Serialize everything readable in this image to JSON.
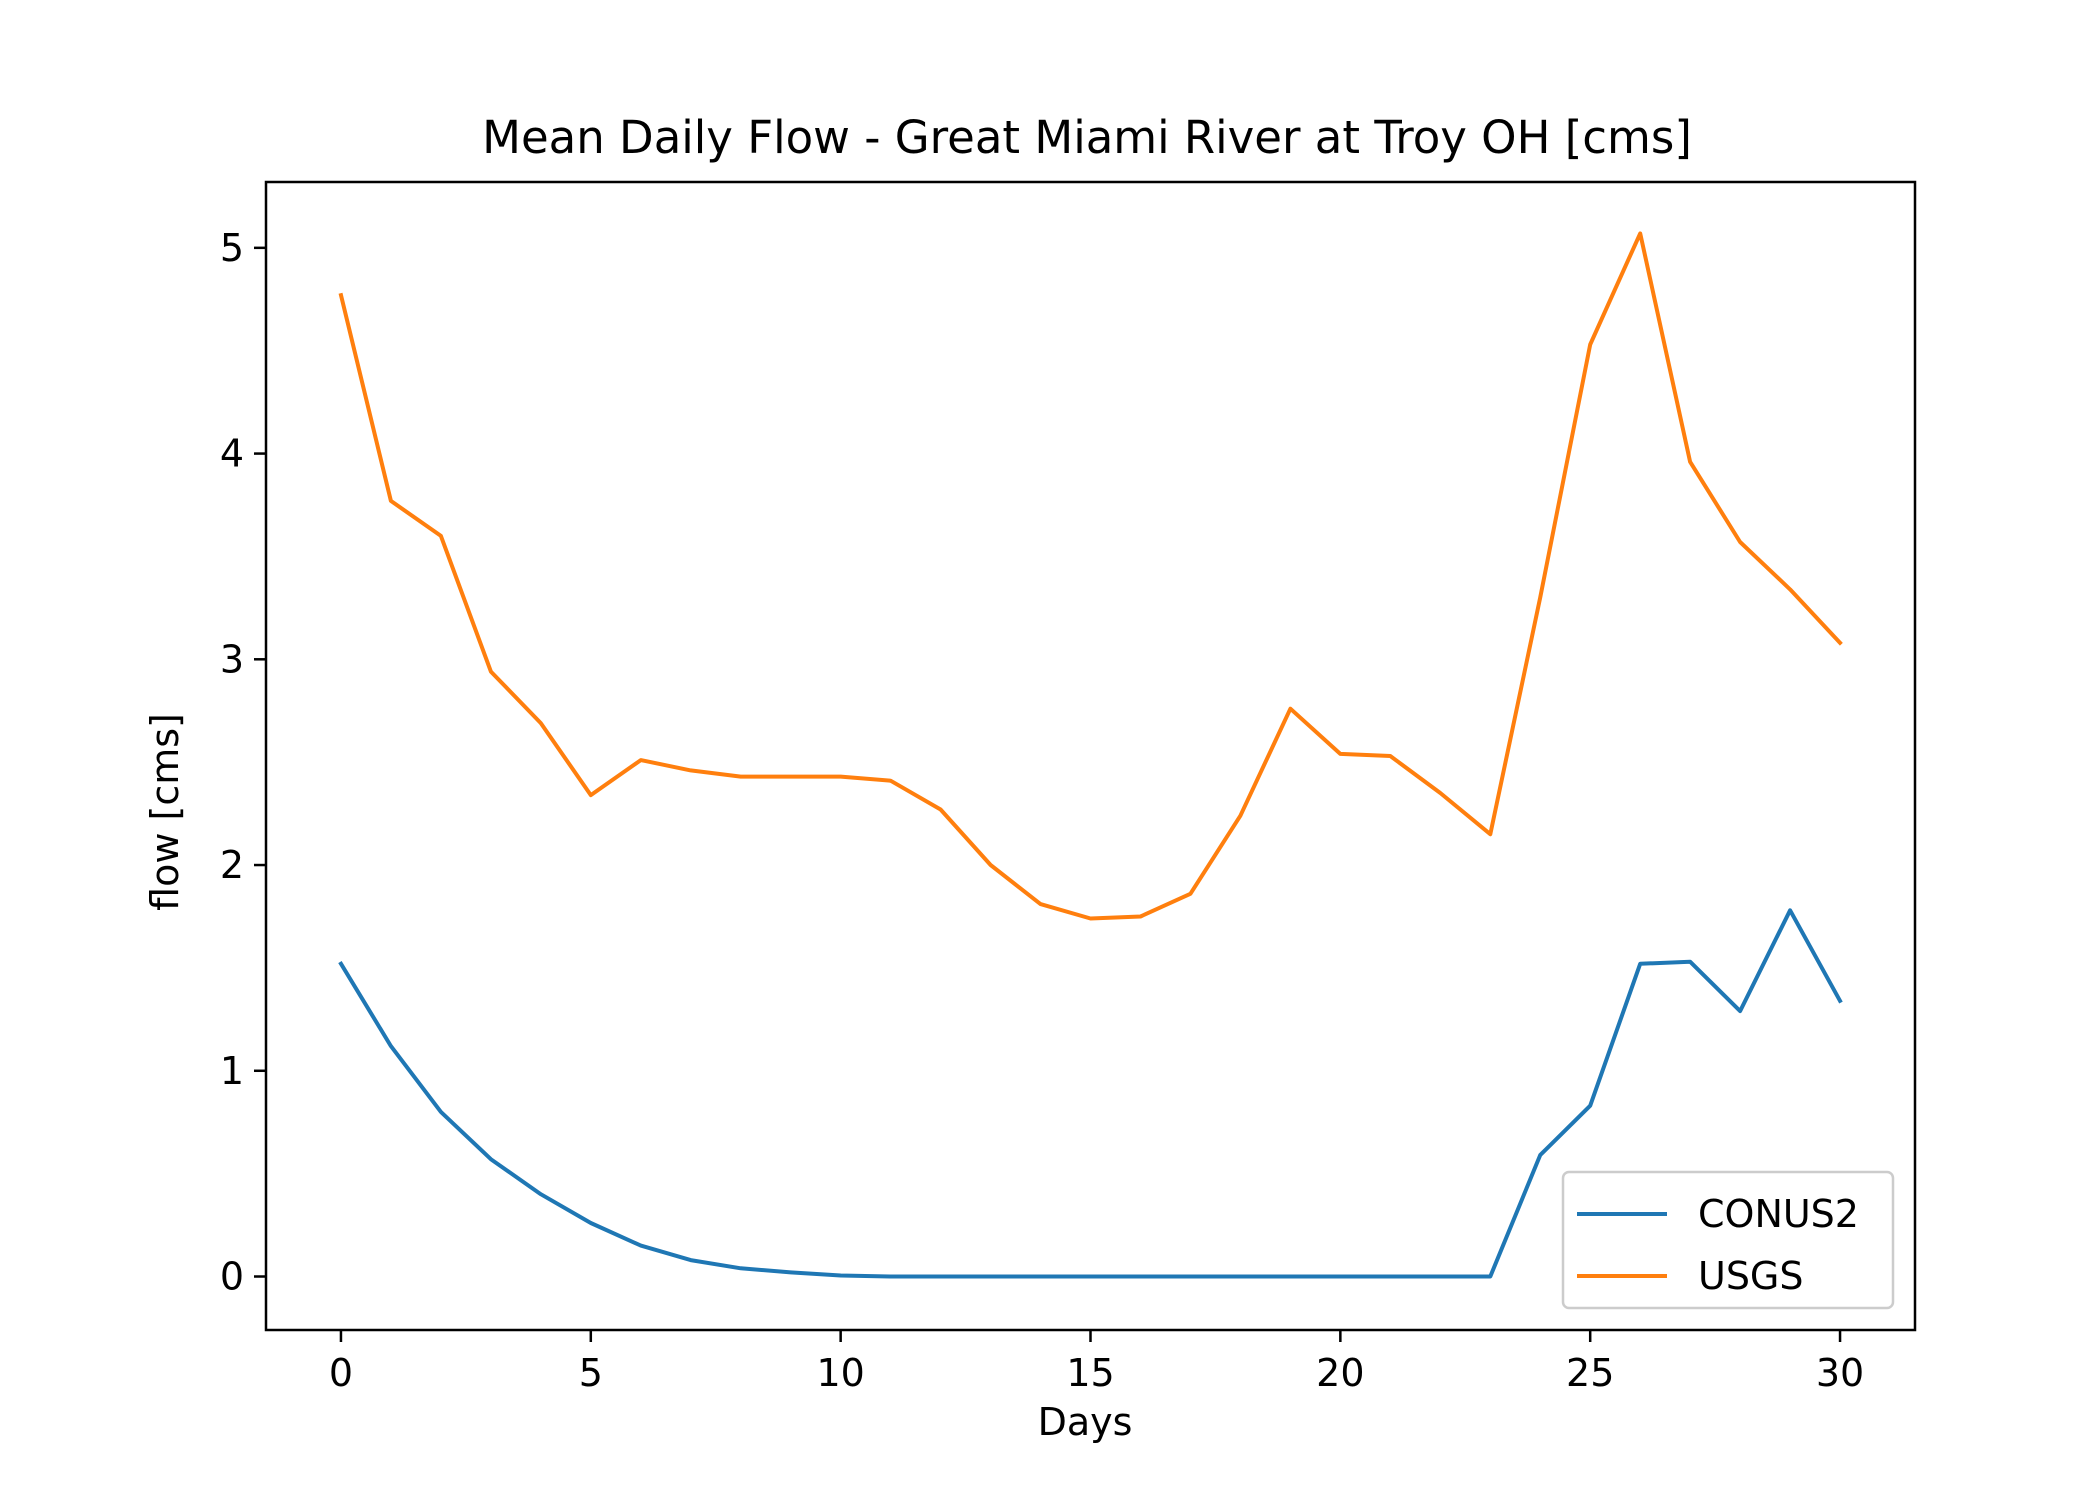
{
  "chart_data": {
    "type": "line",
    "title": "Mean Daily Flow - Great Miami River at Troy OH [cms]",
    "xlabel": "Days",
    "ylabel": "flow [cms]",
    "xlim": [
      -1.5,
      31.5
    ],
    "ylim": [
      -0.26,
      5.32
    ],
    "xticks": [
      0,
      5,
      10,
      15,
      20,
      25,
      30
    ],
    "yticks": [
      0,
      1,
      2,
      3,
      4,
      5
    ],
    "x": [
      0,
      1,
      2,
      3,
      4,
      5,
      6,
      7,
      8,
      9,
      10,
      11,
      12,
      13,
      14,
      15,
      16,
      17,
      18,
      19,
      20,
      21,
      22,
      23,
      24,
      25,
      26,
      27,
      28,
      29,
      30
    ],
    "series": [
      {
        "name": "CONUS2",
        "color": "#1f77b4",
        "values": [
          1.52,
          1.12,
          0.8,
          0.57,
          0.4,
          0.26,
          0.15,
          0.08,
          0.04,
          0.02,
          0.005,
          0,
          0,
          0,
          0,
          0,
          0,
          0,
          0,
          0,
          0,
          0,
          0,
          0,
          0.59,
          0.83,
          1.52,
          1.53,
          1.29,
          1.78,
          1.34
        ]
      },
      {
        "name": "USGS",
        "color": "#ff7f0e",
        "values": [
          4.77,
          3.77,
          3.6,
          2.94,
          2.69,
          2.34,
          2.51,
          2.46,
          2.43,
          2.43,
          2.43,
          2.41,
          2.27,
          2.0,
          1.81,
          1.74,
          1.75,
          1.86,
          2.24,
          2.76,
          2.54,
          2.53,
          2.35,
          2.15,
          3.3,
          4.53,
          5.07,
          3.96,
          3.57,
          3.34,
          3.08
        ]
      }
    ],
    "grid": false,
    "legend": "lower-right"
  }
}
